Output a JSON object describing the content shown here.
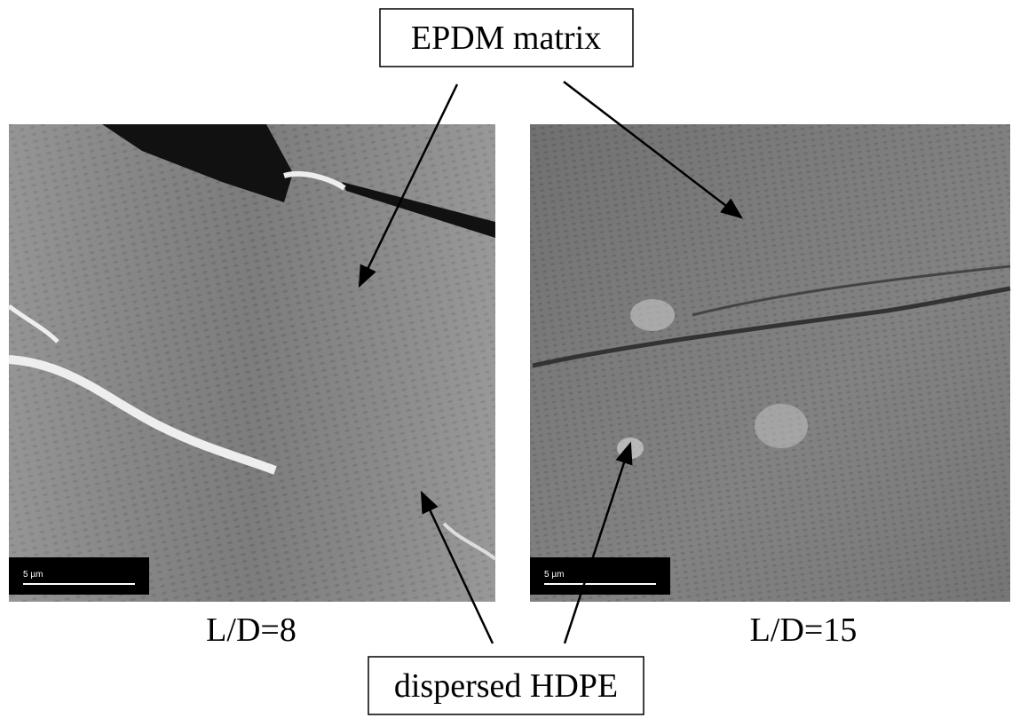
{
  "labels": {
    "top": "EPDM matrix",
    "bottom": "dispersed HDPE"
  },
  "panels": [
    {
      "caption": "L/D=8",
      "scale_bar": "5 µm"
    },
    {
      "caption": "L/D=15",
      "scale_bar": "5 µm"
    }
  ]
}
